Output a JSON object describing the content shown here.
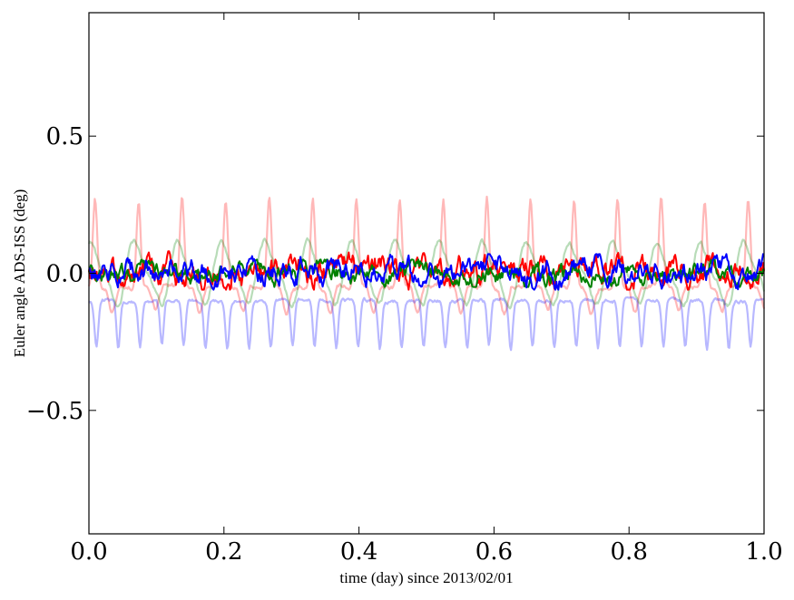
{
  "chart_data": {
    "type": "line",
    "xlabel": "time (day) since 2013/02/01",
    "ylabel": "Euler angle ADS-ISS (deg)",
    "xlim": [
      0.0,
      1.0
    ],
    "ylim": [
      -0.95,
      0.95
    ],
    "xticks": [
      {
        "value": 0.0,
        "label": "0.0"
      },
      {
        "value": 0.2,
        "label": "0.2"
      },
      {
        "value": 0.4,
        "label": "0.4"
      },
      {
        "value": 0.6,
        "label": "0.6"
      },
      {
        "value": 0.8,
        "label": "0.8"
      },
      {
        "value": 1.0,
        "label": "1.0"
      }
    ],
    "yticks": [
      {
        "value": 0.5,
        "label": "0.5"
      },
      {
        "value": 0.0,
        "label": "0.0"
      },
      {
        "value": -0.5,
        "label": "−0.5"
      }
    ],
    "grid": false,
    "legend": "none",
    "series": [
      {
        "color": "#ff0000",
        "opacity": 0.28,
        "style": "periodic-spikes",
        "description_values": {
          "baseline": -0.05,
          "peak": 0.27,
          "trough": -0.15,
          "period_day": 0.0645
        }
      },
      {
        "color": "#008000",
        "opacity": 0.28,
        "style": "periodic-wave",
        "description_values": {
          "center": 0.0,
          "amplitude": 0.1,
          "period_day": 0.0645
        }
      },
      {
        "color": "#0000ff",
        "opacity": 0.28,
        "style": "periodic-dips",
        "description_values": {
          "baseline": -0.1,
          "dip": -0.27,
          "period_day": 0.0323
        }
      },
      {
        "color": "#ff0000",
        "opacity": 1.0,
        "style": "noise",
        "description_values": {
          "center": 0.0,
          "range": [
            -0.06,
            0.08
          ]
        }
      },
      {
        "color": "#008000",
        "opacity": 1.0,
        "style": "noise",
        "description_values": {
          "center": 0.0,
          "range": [
            -0.05,
            0.05
          ]
        }
      },
      {
        "color": "#0000ff",
        "opacity": 1.0,
        "style": "noise",
        "description_values": {
          "center": 0.0,
          "range": [
            -0.06,
            0.07
          ]
        }
      }
    ]
  }
}
